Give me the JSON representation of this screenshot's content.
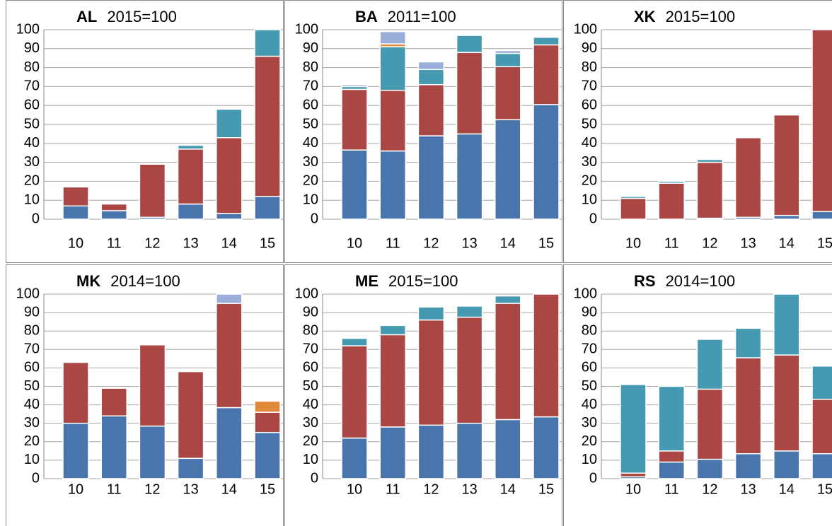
{
  "chart_data": [
    {
      "type": "bar",
      "stacked": true,
      "title": "AL",
      "subtitle": "2015=100",
      "categories": [
        "10",
        "11",
        "12",
        "13",
        "14",
        "15"
      ],
      "ylim": [
        0,
        100
      ],
      "yticks": [
        0,
        10,
        20,
        30,
        40,
        50,
        60,
        70,
        80,
        90,
        100
      ],
      "grid": true,
      "series": [
        {
          "color": "#4a74ac",
          "values": [
            7,
            4.5,
            1,
            8,
            3,
            12
          ]
        },
        {
          "color": "#aa4643",
          "values": [
            10,
            3.5,
            28,
            29,
            40,
            74
          ]
        },
        {
          "color": "#4599b0",
          "values": [
            0,
            0,
            0,
            2,
            15,
            14
          ]
        }
      ]
    },
    {
      "type": "bar",
      "stacked": true,
      "title": "BA",
      "subtitle": "2011=100",
      "categories": [
        "10",
        "11",
        "12",
        "13",
        "14",
        "15"
      ],
      "ylim": [
        0,
        100
      ],
      "yticks": [
        0,
        10,
        20,
        30,
        40,
        50,
        60,
        70,
        80,
        90,
        100
      ],
      "grid": true,
      "series": [
        {
          "color": "#4a74ac",
          "values": [
            36.5,
            36,
            44,
            45,
            52.5,
            60.5
          ]
        },
        {
          "color": "#aa4643",
          "values": [
            32,
            32,
            27,
            43,
            28,
            31.5
          ]
        },
        {
          "color": "#4599b0",
          "values": [
            1.5,
            23,
            8,
            9,
            7,
            4
          ]
        },
        {
          "color": "#e0893b",
          "values": [
            0,
            1.5,
            0,
            0,
            0,
            0
          ]
        },
        {
          "color": "#9badd9",
          "values": [
            1,
            6.5,
            4,
            0,
            1.5,
            0
          ]
        }
      ]
    },
    {
      "type": "bar",
      "stacked": true,
      "title": "XK",
      "subtitle": "2015=100",
      "categories": [
        "10",
        "11",
        "12",
        "13",
        "14",
        "15"
      ],
      "ylim": [
        0,
        100
      ],
      "yticks": [
        0,
        10,
        20,
        30,
        40,
        50,
        60,
        70,
        80,
        90,
        100
      ],
      "grid": true,
      "series": [
        {
          "color": "#4a74ac",
          "values": [
            0,
            0,
            0.5,
            1,
            2,
            4
          ]
        },
        {
          "color": "#aa4643",
          "values": [
            11,
            19,
            29.5,
            42,
            53,
            96
          ]
        },
        {
          "color": "#4599b0",
          "values": [
            1,
            1,
            1.5,
            0,
            0,
            0
          ]
        }
      ]
    },
    {
      "type": "bar",
      "stacked": true,
      "title": "MK",
      "subtitle": "2014=100",
      "categories": [
        "10",
        "11",
        "12",
        "13",
        "14",
        "15"
      ],
      "ylim": [
        0,
        100
      ],
      "yticks": [
        0,
        10,
        20,
        30,
        40,
        50,
        60,
        70,
        80,
        90,
        100
      ],
      "grid": true,
      "series": [
        {
          "color": "#4a74ac",
          "values": [
            30,
            34,
            28.5,
            11,
            38.5,
            25
          ]
        },
        {
          "color": "#aa4643",
          "values": [
            33,
            15,
            44,
            47,
            56.5,
            11
          ]
        },
        {
          "color": "#9badd9",
          "values": [
            0,
            0,
            0,
            0,
            5,
            0
          ]
        },
        {
          "color": "#e0893b",
          "values": [
            0,
            0,
            0,
            0,
            0,
            6
          ]
        }
      ]
    },
    {
      "type": "bar",
      "stacked": true,
      "title": "ME",
      "subtitle": "2015=100",
      "categories": [
        "10",
        "11",
        "12",
        "13",
        "14",
        "15"
      ],
      "ylim": [
        0,
        100
      ],
      "yticks": [
        0,
        10,
        20,
        30,
        40,
        50,
        60,
        70,
        80,
        90,
        100
      ],
      "grid": true,
      "series": [
        {
          "color": "#4a74ac",
          "values": [
            22,
            28,
            29,
            30,
            32,
            33.5
          ]
        },
        {
          "color": "#aa4643",
          "values": [
            50,
            50,
            57,
            57.5,
            63,
            66.5
          ]
        },
        {
          "color": "#4599b0",
          "values": [
            4,
            5,
            7,
            6,
            4,
            0
          ]
        }
      ]
    },
    {
      "type": "bar",
      "stacked": true,
      "title": "RS",
      "subtitle": "2014=100",
      "categories": [
        "10",
        "11",
        "12",
        "13",
        "14",
        "15"
      ],
      "ylim": [
        0,
        100
      ],
      "yticks": [
        0,
        10,
        20,
        30,
        40,
        50,
        60,
        70,
        80,
        90,
        100
      ],
      "grid": true,
      "series": [
        {
          "color": "#4a74ac",
          "values": [
            1,
            9,
            10.5,
            13.5,
            15,
            13.5
          ]
        },
        {
          "color": "#aa4643",
          "values": [
            2,
            6,
            38,
            52,
            52,
            29.5
          ]
        },
        {
          "color": "#4599b0",
          "values": [
            48,
            35,
            27,
            16,
            33,
            18
          ]
        }
      ]
    }
  ]
}
